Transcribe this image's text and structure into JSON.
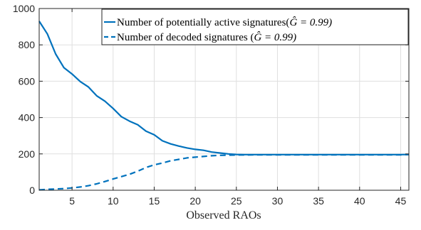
{
  "chart_data": {
    "type": "line",
    "title": "",
    "xlabel": "Observed RAOs",
    "ylabel": "",
    "xlim": [
      1,
      46
    ],
    "ylim": [
      0,
      1000
    ],
    "xticks": [
      5,
      10,
      15,
      20,
      25,
      30,
      35,
      40,
      45
    ],
    "yticks": [
      0,
      200,
      400,
      600,
      800,
      1000
    ],
    "xtick_labels": [
      "5",
      "10",
      "15",
      "20",
      "25",
      "30",
      "35",
      "40",
      "45"
    ],
    "ytick_labels": [
      "0",
      "200",
      "400",
      "600",
      "800",
      "1000"
    ],
    "grid": true,
    "legend_position": "top-right",
    "x": [
      1,
      2,
      3,
      4,
      5,
      6,
      7,
      8,
      9,
      10,
      11,
      12,
      13,
      14,
      15,
      16,
      17,
      18,
      19,
      20,
      21,
      22,
      23,
      24,
      25,
      26,
      27,
      28,
      29,
      30,
      31,
      32,
      33,
      34,
      35,
      36,
      37,
      38,
      39,
      40,
      41,
      42,
      43,
      44,
      45,
      46
    ],
    "series": [
      {
        "name": "Number of potentially active signatures(",
        "name_math": "Ĝ = 0.99)",
        "style": "solid",
        "color": "#0072BD",
        "values": [
          930,
          860,
          750,
          675,
          640,
          598,
          568,
          520,
          490,
          450,
          405,
          380,
          360,
          325,
          305,
          272,
          255,
          243,
          233,
          225,
          220,
          210,
          205,
          200,
          197,
          196,
          196,
          196,
          196,
          196,
          196,
          196,
          196,
          196,
          196,
          196,
          196,
          196,
          196,
          196,
          196,
          196,
          196,
          196,
          196,
          197
        ]
      },
      {
        "name": "Number of decoded signatures (",
        "name_math": "Ĝ = 0.99)",
        "style": "dashed",
        "color": "#0072BD",
        "values": [
          2,
          5,
          7,
          9,
          13,
          18,
          25,
          35,
          48,
          62,
          75,
          88,
          105,
          125,
          140,
          150,
          162,
          170,
          178,
          182,
          186,
          190,
          192,
          193,
          194,
          194,
          195,
          195,
          195,
          195,
          195,
          195,
          195,
          195,
          195,
          195,
          195,
          195,
          195,
          195,
          195,
          195,
          195,
          195,
          195,
          196
        ]
      }
    ]
  }
}
